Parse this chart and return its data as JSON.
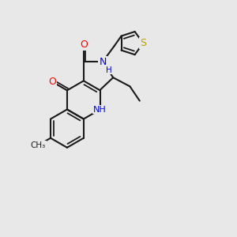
{
  "bg_color": "#e8e8e8",
  "bond_color": "#1a1a1a",
  "bond_width": 1.5,
  "atom_colors": {
    "O": "#ff0000",
    "N": "#0000ee",
    "S": "#b8a000",
    "C": "#1a1a1a",
    "H": "#0000ee"
  },
  "font_size": 8.5,
  "figsize": [
    3.0,
    3.0
  ],
  "dpi": 100,
  "xlim": [
    0,
    10
  ],
  "ylim": [
    0,
    10
  ]
}
